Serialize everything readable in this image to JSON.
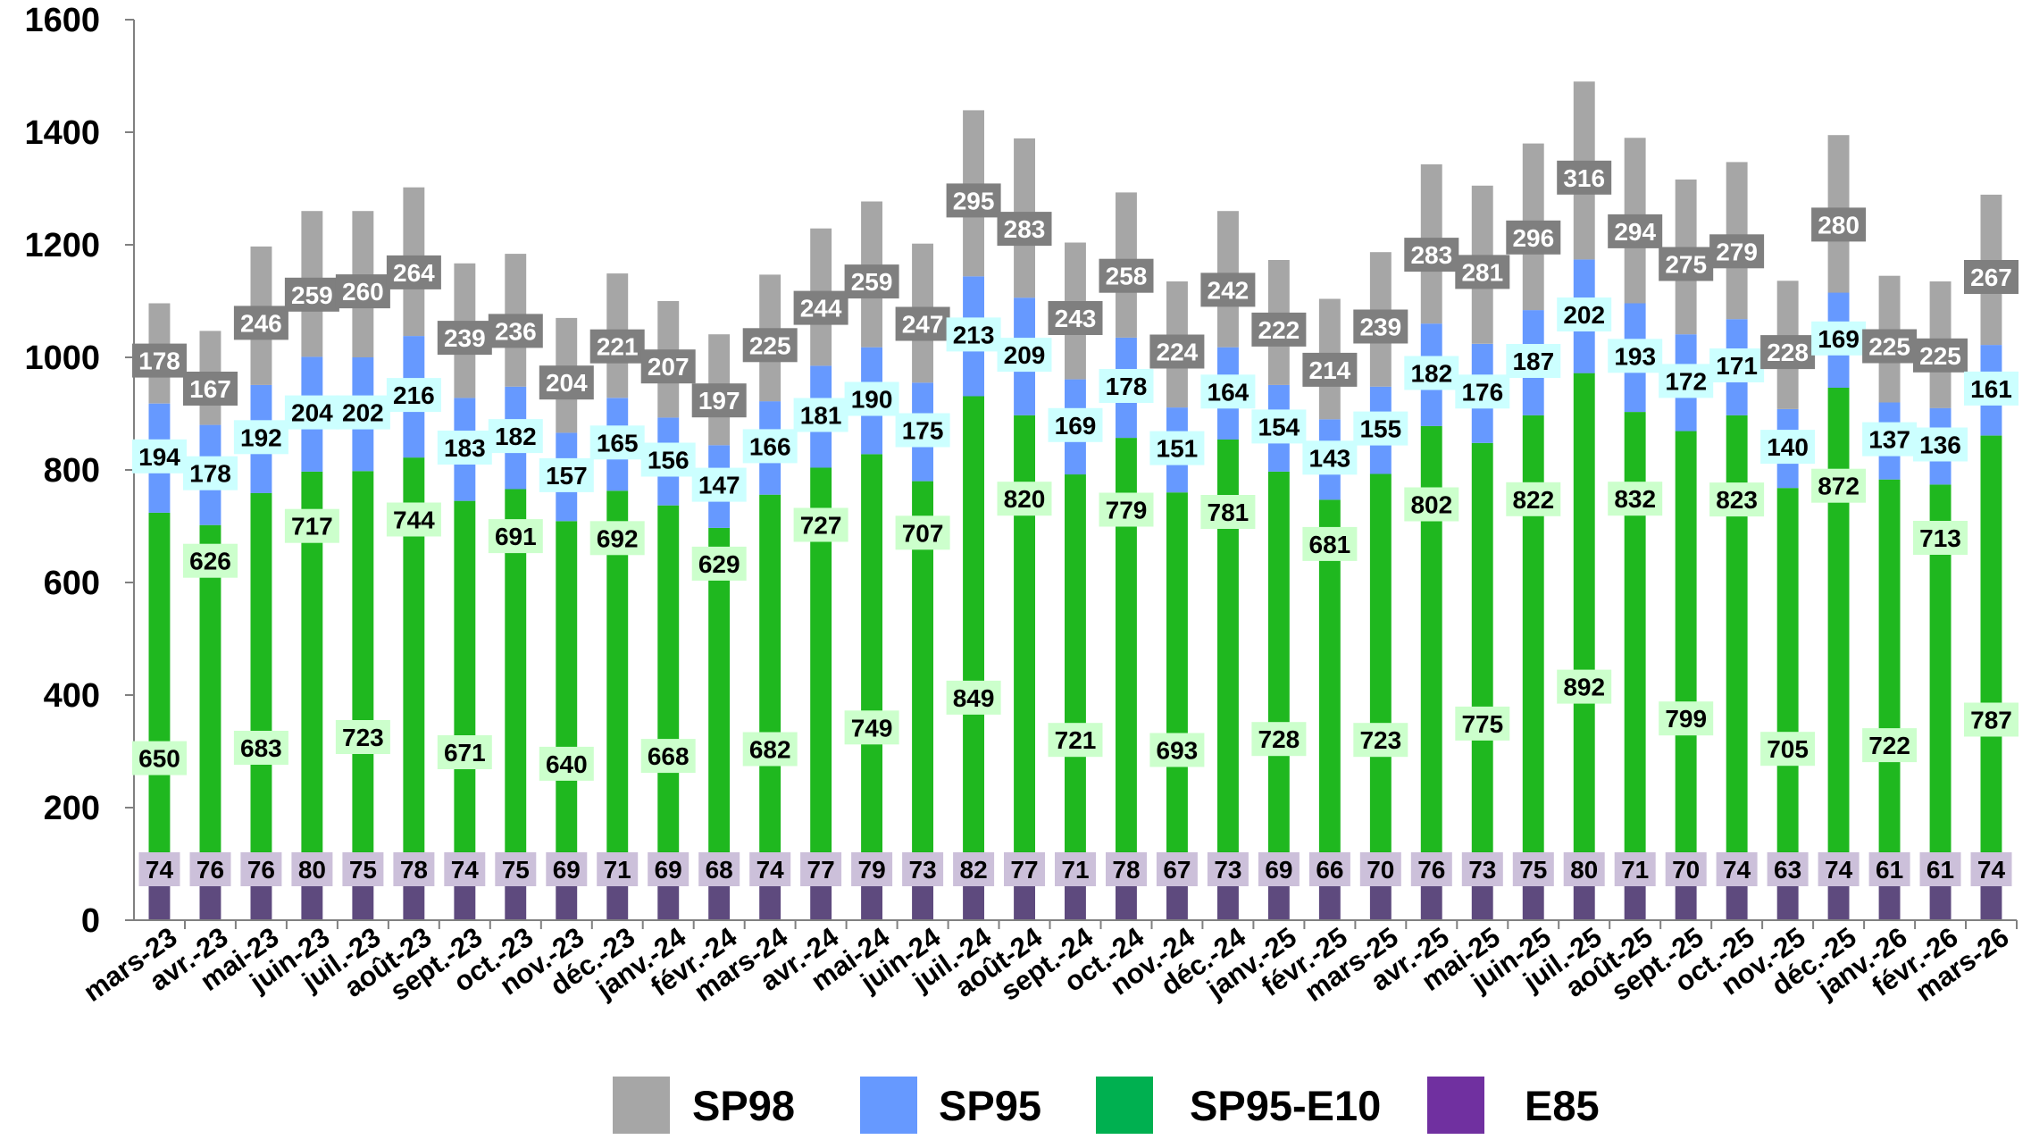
{
  "colors": {
    "SP98": "#a6a6a6",
    "SP95": "#6699ff",
    "SP95-E10": "#1fb81f",
    "E85": "#5e4a7e",
    "legend_SP95-E10": "#00b050",
    "legend_E85": "#7030a0",
    "label_SP98_bg": "#7f7f7f",
    "label_SP95_bg": "#ccffff",
    "label_E10_bg": "#ccffcc",
    "label_E85_bg": "#ccc0da"
  },
  "chart_data": {
    "type": "bar",
    "stacked": true,
    "ylim": [
      0,
      1600
    ],
    "yticks": [
      "0",
      "200",
      "400",
      "600",
      "800",
      "1000",
      "1200",
      "1400",
      "1600"
    ],
    "categories": [
      "mars-23",
      "avr.-23",
      "mai-23",
      "juin-23",
      "juil.-23",
      "août-23",
      "sept.-23",
      "oct.-23",
      "nov.-23",
      "déc.-23",
      "janv.-24",
      "févr.-24",
      "mars-24",
      "avr.-24",
      "mai-24",
      "juin-24",
      "juil.-24",
      "août-24",
      "sept.-24",
      "oct.-24",
      "nov.-24",
      "déc.-24",
      "janv.-25",
      "févr.-25",
      "mars-25",
      "avr.-25",
      "mai-25",
      "juin-25",
      "juil.-25",
      "août-25",
      "sept.-25",
      "oct.-25",
      "nov.-25",
      "déc.-25",
      "janv.-26",
      "févr.-26",
      "mars-26"
    ],
    "series": [
      {
        "name": "E85",
        "values": [
          74,
          76,
          76,
          80,
          75,
          78,
          74,
          75,
          69,
          71,
          69,
          68,
          74,
          77,
          79,
          73,
          82,
          77,
          71,
          78,
          67,
          73,
          69,
          66,
          70,
          76,
          73,
          75,
          80,
          71,
          70,
          74,
          63,
          74,
          61,
          61,
          74
        ]
      },
      {
        "name": "SP95-E10",
        "values": [
          650,
          626,
          683,
          717,
          723,
          744,
          671,
          691,
          640,
          692,
          668,
          629,
          682,
          727,
          749,
          707,
          849,
          820,
          721,
          779,
          693,
          781,
          728,
          681,
          723,
          802,
          775,
          822,
          892,
          832,
          799,
          823,
          705,
          872,
          722,
          713,
          787
        ]
      },
      {
        "name": "SP95",
        "values": [
          194,
          178,
          192,
          204,
          202,
          216,
          183,
          182,
          157,
          165,
          156,
          147,
          166,
          181,
          190,
          175,
          213,
          209,
          169,
          178,
          151,
          164,
          154,
          143,
          155,
          182,
          176,
          187,
          202,
          193,
          172,
          171,
          140,
          169,
          137,
          136,
          161
        ]
      },
      {
        "name": "SP98",
        "values": [
          178,
          167,
          246,
          259,
          260,
          264,
          239,
          236,
          204,
          221,
          207,
          197,
          225,
          244,
          259,
          247,
          295,
          283,
          243,
          258,
          224,
          242,
          222,
          214,
          239,
          283,
          281,
          296,
          316,
          294,
          275,
          279,
          228,
          280,
          225,
          225,
          267
        ]
      }
    ],
    "legend": {
      "position": "bottom",
      "entries": [
        "SP98",
        "SP95",
        "SP95-E10",
        "E85"
      ]
    },
    "grid": false
  }
}
